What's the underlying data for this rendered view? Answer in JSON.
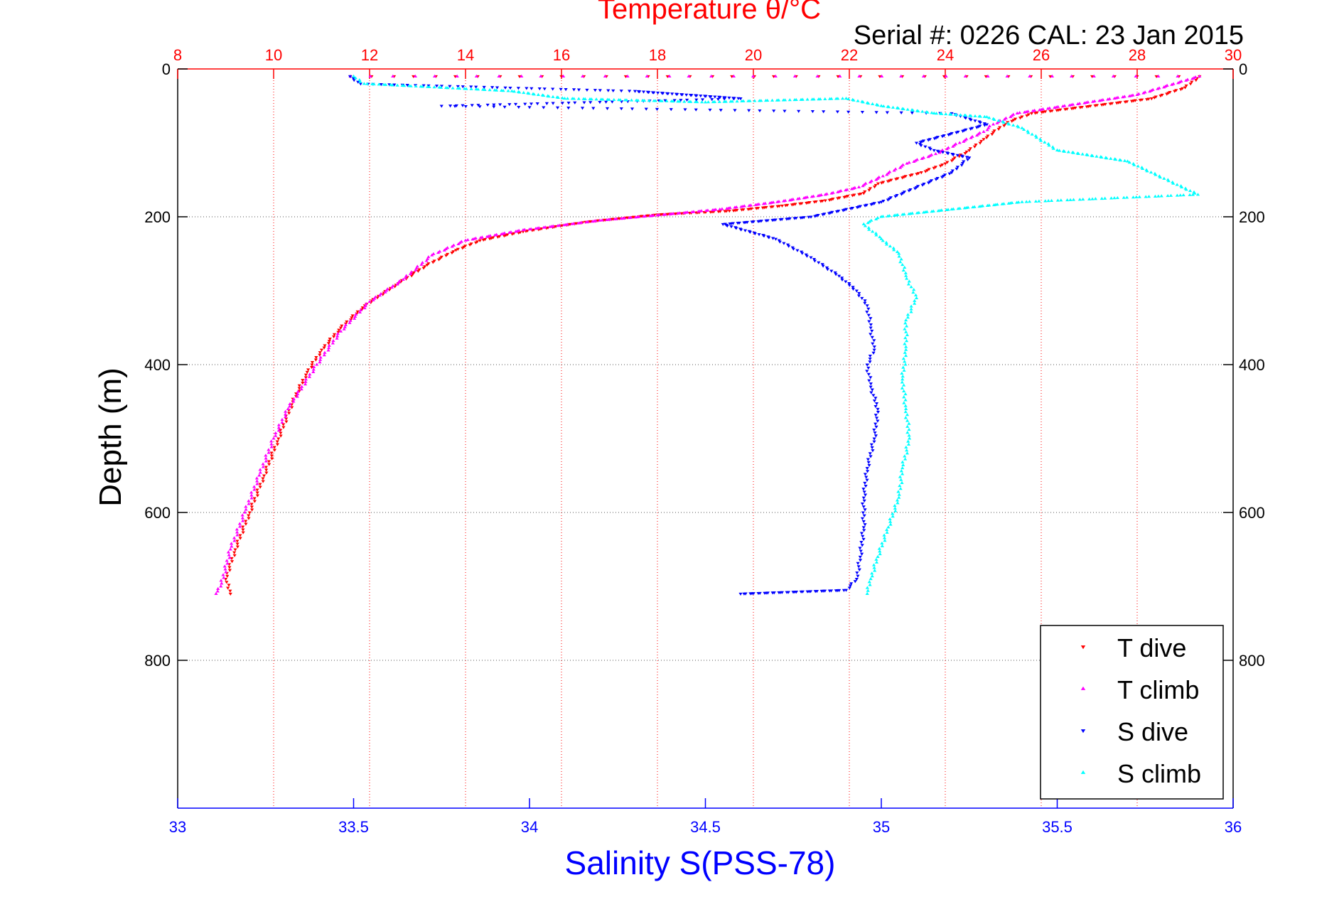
{
  "chart_data": {
    "type": "scatter",
    "title": "Temperature θ/°C",
    "subtitle": "Serial #: 0226  CAL: 23 Jan 2015",
    "ylabel": "Depth (m)",
    "xlabel_bottom": "Salinity S(PSS-78)",
    "y_axis": {
      "range": [
        0,
        1000
      ],
      "reversed": true,
      "ticks": [
        0,
        200,
        400,
        600,
        800
      ]
    },
    "x_top_temperature": {
      "range": [
        8,
        30
      ],
      "ticks": [
        8,
        10,
        12,
        14,
        16,
        18,
        20,
        22,
        24,
        26,
        28,
        30
      ],
      "color": "#ff0000"
    },
    "x_bottom_salinity": {
      "range": [
        33,
        36
      ],
      "ticks": [
        "33",
        "33.5",
        "34",
        "34.5",
        "35",
        "35.5",
        "36"
      ],
      "color": "#0000ff"
    },
    "grid": true,
    "legend_placement": "bottom-right",
    "series": [
      {
        "name": "T dive",
        "axis": "temperature",
        "marker": "triangle-down",
        "color": "#ff0000",
        "points": [
          [
            11.6,
            10
          ],
          [
            29.3,
            10
          ],
          [
            29.0,
            25
          ],
          [
            28.3,
            40
          ],
          [
            25.8,
            60
          ],
          [
            25.3,
            72
          ],
          [
            24.8,
            95
          ],
          [
            24.5,
            110
          ],
          [
            24.0,
            128
          ],
          [
            23.5,
            140
          ],
          [
            22.6,
            155
          ],
          [
            22.3,
            168
          ],
          [
            21.5,
            178
          ],
          [
            20.6,
            185
          ],
          [
            19.5,
            192
          ],
          [
            18.0,
            197
          ],
          [
            16.5,
            207
          ],
          [
            15.2,
            220
          ],
          [
            14.3,
            232
          ],
          [
            13.8,
            245
          ],
          [
            13.2,
            265
          ],
          [
            12.6,
            290
          ],
          [
            11.9,
            320
          ],
          [
            11.4,
            350
          ],
          [
            11.0,
            380
          ],
          [
            10.7,
            410
          ],
          [
            10.4,
            450
          ],
          [
            10.1,
            500
          ],
          [
            9.8,
            550
          ],
          [
            9.5,
            600
          ],
          [
            9.2,
            650
          ],
          [
            9.0,
            690
          ],
          [
            9.1,
            710
          ]
        ]
      },
      {
        "name": "T climb",
        "axis": "temperature",
        "marker": "triangle-up",
        "color": "#ff00ff",
        "points": [
          [
            11.6,
            10
          ],
          [
            29.3,
            10
          ],
          [
            28.0,
            35
          ],
          [
            25.5,
            60
          ],
          [
            25.0,
            75
          ],
          [
            24.8,
            85
          ],
          [
            24.3,
            100
          ],
          [
            23.8,
            115
          ],
          [
            23.2,
            128
          ],
          [
            22.7,
            145
          ],
          [
            22.2,
            160
          ],
          [
            21.5,
            170
          ],
          [
            20.5,
            180
          ],
          [
            19.3,
            190
          ],
          [
            18.0,
            198
          ],
          [
            16.8,
            205
          ],
          [
            15.2,
            218
          ],
          [
            14.0,
            232
          ],
          [
            13.3,
            252
          ],
          [
            12.7,
            285
          ],
          [
            12.0,
            315
          ],
          [
            11.4,
            355
          ],
          [
            10.9,
            400
          ],
          [
            10.3,
            460
          ],
          [
            10.0,
            500
          ],
          [
            9.7,
            550
          ],
          [
            9.4,
            600
          ],
          [
            9.1,
            650
          ],
          [
            8.9,
            700
          ],
          [
            8.8,
            710
          ]
        ]
      },
      {
        "name": "S dive",
        "axis": "salinity",
        "marker": "triangle-down",
        "color": "#0000ff",
        "points": [
          [
            33.49,
            10
          ],
          [
            33.52,
            20
          ],
          [
            34.3,
            30
          ],
          [
            34.6,
            40
          ],
          [
            33.75,
            50
          ],
          [
            35.2,
            60
          ],
          [
            35.3,
            75
          ],
          [
            35.1,
            100
          ],
          [
            35.15,
            110
          ],
          [
            35.25,
            120
          ],
          [
            35.2,
            140
          ],
          [
            35.0,
            180
          ],
          [
            34.8,
            200
          ],
          [
            34.55,
            210
          ],
          [
            34.7,
            230
          ],
          [
            34.8,
            255
          ],
          [
            34.88,
            280
          ],
          [
            34.93,
            300
          ],
          [
            34.96,
            320
          ],
          [
            34.97,
            350
          ],
          [
            34.98,
            380
          ],
          [
            34.96,
            400
          ],
          [
            34.97,
            430
          ],
          [
            34.99,
            460
          ],
          [
            34.98,
            500
          ],
          [
            34.96,
            540
          ],
          [
            34.95,
            580
          ],
          [
            34.95,
            620
          ],
          [
            34.94,
            660
          ],
          [
            34.93,
            690
          ],
          [
            34.9,
            705
          ],
          [
            34.6,
            710
          ]
        ]
      },
      {
        "name": "S climb",
        "axis": "salinity",
        "marker": "triangle-up",
        "color": "#00ffff",
        "points": [
          [
            33.5,
            10
          ],
          [
            33.53,
            20
          ],
          [
            33.95,
            30
          ],
          [
            34.1,
            40
          ],
          [
            34.5,
            45
          ],
          [
            34.9,
            40
          ],
          [
            35.0,
            50
          ],
          [
            35.15,
            60
          ],
          [
            35.3,
            65
          ],
          [
            35.4,
            80
          ],
          [
            35.5,
            110
          ],
          [
            35.7,
            125
          ],
          [
            35.9,
            170
          ],
          [
            35.4,
            180
          ],
          [
            35.2,
            190
          ],
          [
            35.0,
            200
          ],
          [
            34.95,
            210
          ],
          [
            35.0,
            230
          ],
          [
            35.05,
            250
          ],
          [
            35.07,
            280
          ],
          [
            35.1,
            310
          ],
          [
            35.07,
            340
          ],
          [
            35.07,
            380
          ],
          [
            35.06,
            420
          ],
          [
            35.07,
            460
          ],
          [
            35.08,
            500
          ],
          [
            35.06,
            540
          ],
          [
            35.05,
            580
          ],
          [
            35.02,
            620
          ],
          [
            34.99,
            660
          ],
          [
            34.97,
            690
          ],
          [
            34.96,
            710
          ]
        ]
      }
    ]
  }
}
